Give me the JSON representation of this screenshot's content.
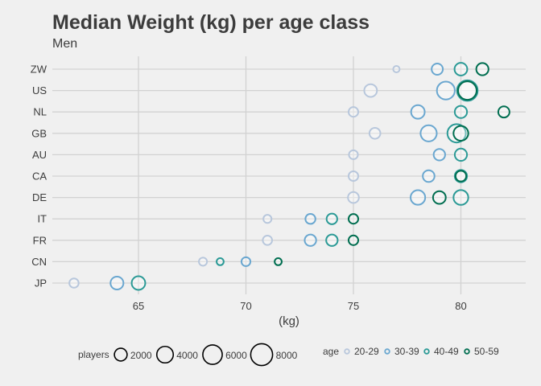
{
  "chart_data": {
    "type": "scatter",
    "title": "Median Weight (kg) per age class",
    "subtitle": "Men",
    "xlabel": "(kg)",
    "ylabel": "",
    "xlim": [
      61,
      83
    ],
    "x_ticks": [
      65,
      70,
      75,
      80
    ],
    "categories": [
      "ZW",
      "US",
      "NL",
      "GB",
      "AU",
      "CA",
      "DE",
      "IT",
      "FR",
      "CN",
      "JP"
    ],
    "grid": true,
    "legend_position": "bottom",
    "size_legend": {
      "title": "players",
      "values": [
        2000,
        4000,
        6000,
        8000
      ]
    },
    "color_legend": {
      "title": "age",
      "entries": [
        {
          "name": "20-29",
          "color": "#b8c7dc"
        },
        {
          "name": "30-39",
          "color": "#6aa7d0"
        },
        {
          "name": "40-49",
          "color": "#2b9a96"
        },
        {
          "name": "50-59",
          "color": "#006e50"
        }
      ]
    },
    "series": [
      {
        "name": "20-29",
        "color": "#b8c7dc",
        "points": [
          {
            "country": "ZW",
            "weight": 77,
            "players": 200
          },
          {
            "country": "US",
            "weight": 75.8,
            "players": 2000
          },
          {
            "country": "NL",
            "weight": 75,
            "players": 900
          },
          {
            "country": "GB",
            "weight": 76,
            "players": 1300
          },
          {
            "country": "AU",
            "weight": 75,
            "players": 700
          },
          {
            "country": "CA",
            "weight": 75,
            "players": 900
          },
          {
            "country": "DE",
            "weight": 75,
            "players": 1300
          },
          {
            "country": "IT",
            "weight": 71,
            "players": 500
          },
          {
            "country": "FR",
            "weight": 71,
            "players": 800
          },
          {
            "country": "CN",
            "weight": 68,
            "players": 500
          },
          {
            "country": "JP",
            "weight": 62,
            "players": 800
          }
        ]
      },
      {
        "name": "30-39",
        "color": "#6aa7d0",
        "points": [
          {
            "country": "ZW",
            "weight": 78.9,
            "players": 1400
          },
          {
            "country": "US",
            "weight": 79.3,
            "players": 4900
          },
          {
            "country": "NL",
            "weight": 78,
            "players": 2400
          },
          {
            "country": "GB",
            "weight": 78.5,
            "players": 3800
          },
          {
            "country": "AU",
            "weight": 79,
            "players": 1500
          },
          {
            "country": "CA",
            "weight": 78.5,
            "players": 1600
          },
          {
            "country": "DE",
            "weight": 78,
            "players": 2900
          },
          {
            "country": "IT",
            "weight": 73,
            "players": 1000
          },
          {
            "country": "FR",
            "weight": 73,
            "players": 1500
          },
          {
            "country": "CN",
            "weight": 70,
            "players": 700
          },
          {
            "country": "JP",
            "weight": 64,
            "players": 2100
          }
        ]
      },
      {
        "name": "40-49",
        "color": "#2b9a96",
        "points": [
          {
            "country": "ZW",
            "weight": 80,
            "players": 2000
          },
          {
            "country": "US",
            "weight": 80.3,
            "players": 6900
          },
          {
            "country": "NL",
            "weight": 80,
            "players": 1800
          },
          {
            "country": "GB",
            "weight": 79.8,
            "players": 5200
          },
          {
            "country": "AU",
            "weight": 80,
            "players": 1800
          },
          {
            "country": "CA",
            "weight": 80,
            "players": 1800
          },
          {
            "country": "DE",
            "weight": 80,
            "players": 3000
          },
          {
            "country": "IT",
            "weight": 74,
            "players": 1200
          },
          {
            "country": "FR",
            "weight": 74,
            "players": 1500
          },
          {
            "country": "CN",
            "weight": 68.8,
            "players": 300
          },
          {
            "country": "JP",
            "weight": 65,
            "players": 2400
          }
        ]
      },
      {
        "name": "50-59",
        "color": "#006e50",
        "points": [
          {
            "country": "ZW",
            "weight": 81,
            "players": 1800
          },
          {
            "country": "US",
            "weight": 80.3,
            "players": 5300
          },
          {
            "country": "NL",
            "weight": 82,
            "players": 1400
          },
          {
            "country": "GB",
            "weight": 80,
            "players": 3000
          },
          {
            "country": "AU",
            "weight": 80,
            "players": 0
          },
          {
            "country": "CA",
            "weight": 80,
            "players": 1200
          },
          {
            "country": "DE",
            "weight": 79,
            "players": 2000
          },
          {
            "country": "IT",
            "weight": 75,
            "players": 900
          },
          {
            "country": "FR",
            "weight": 75,
            "players": 900
          },
          {
            "country": "CN",
            "weight": 71.5,
            "players": 300
          },
          {
            "country": "JP",
            "weight": 65,
            "players": 0
          }
        ]
      }
    ]
  }
}
